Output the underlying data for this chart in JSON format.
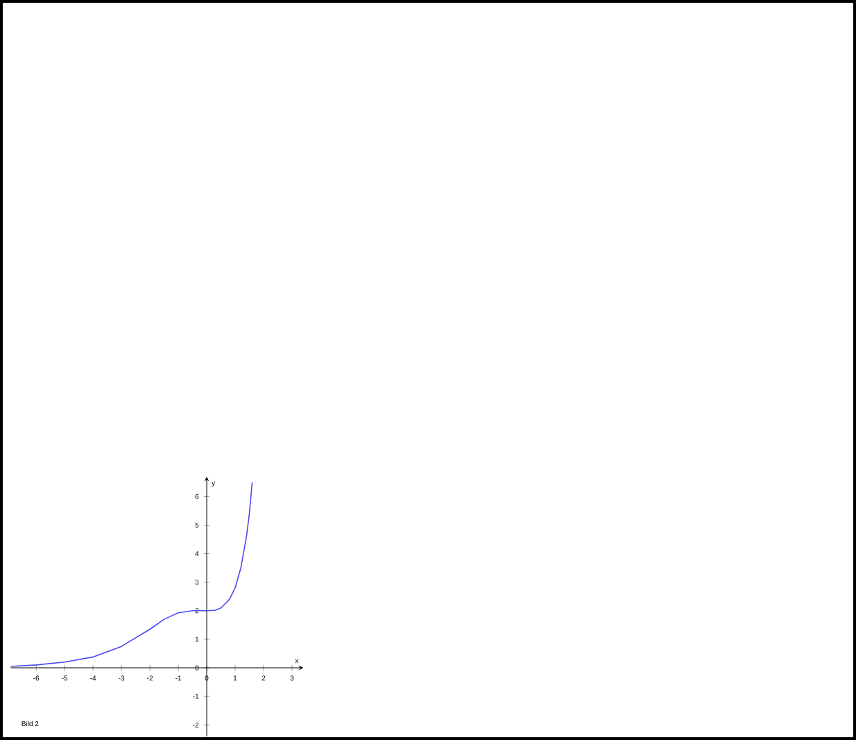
{
  "chart_data": {
    "type": "line",
    "xlabel": "x",
    "ylabel": "y",
    "annotations": [
      "Bild 2"
    ],
    "xlim": [
      -6.9,
      3.4
    ],
    "ylim": [
      -2.4,
      6.7
    ],
    "xticks": [
      -6,
      -5,
      -4,
      -3,
      -2,
      -1,
      0,
      1,
      2,
      3
    ],
    "yticks": [
      -2,
      -1,
      0,
      1,
      2,
      3,
      4,
      5,
      6
    ],
    "grid": false,
    "marker": "none",
    "line_style": "solid",
    "series": [
      {
        "color": "#4a4af0",
        "x": [
          -6.9,
          -6,
          -5,
          -4,
          -3,
          -2,
          -1.5,
          -1,
          -0.5,
          0,
          0.3,
          0.5,
          0.8,
          1,
          1.2,
          1.4,
          1.5,
          1.6
        ],
        "values": [
          0.05,
          0.1,
          0.2,
          0.38,
          0.75,
          1.35,
          1.7,
          1.93,
          2.0,
          2.0,
          2.02,
          2.1,
          2.4,
          2.8,
          3.5,
          4.6,
          5.4,
          6.5
        ]
      }
    ]
  }
}
